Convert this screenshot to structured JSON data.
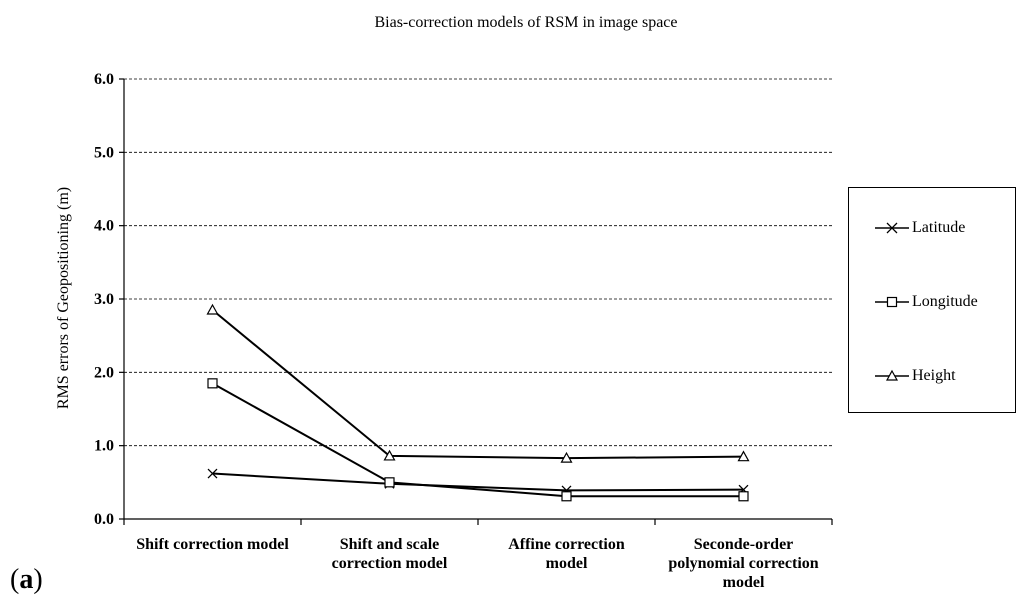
{
  "chart_data": {
    "type": "line",
    "title": "Bias-correction models of RSM in image space",
    "ylabel": "RMS errors of Geopositioning (m)",
    "xlabel": "",
    "ylim": [
      0,
      6
    ],
    "yticks": [
      "0.0",
      "1.0",
      "2.0",
      "3.0",
      "4.0",
      "5.0",
      "6.0"
    ],
    "grid": true,
    "legend_position": "right",
    "categories": [
      [
        "Shift correction model"
      ],
      [
        "Shift and scale",
        "correction model"
      ],
      [
        "Affine correction",
        "model"
      ],
      [
        "Seconde-order",
        "polynomial correction",
        "model"
      ]
    ],
    "series": [
      {
        "name": "Latitude",
        "marker": "x",
        "values": [
          0.62,
          0.48,
          0.39,
          0.4
        ]
      },
      {
        "name": "Longitude",
        "marker": "square",
        "values": [
          1.85,
          0.5,
          0.31,
          0.31
        ]
      },
      {
        "name": "Height",
        "marker": "triangle",
        "values": [
          2.85,
          0.86,
          0.83,
          0.85
        ]
      }
    ]
  },
  "panel_label": "a"
}
